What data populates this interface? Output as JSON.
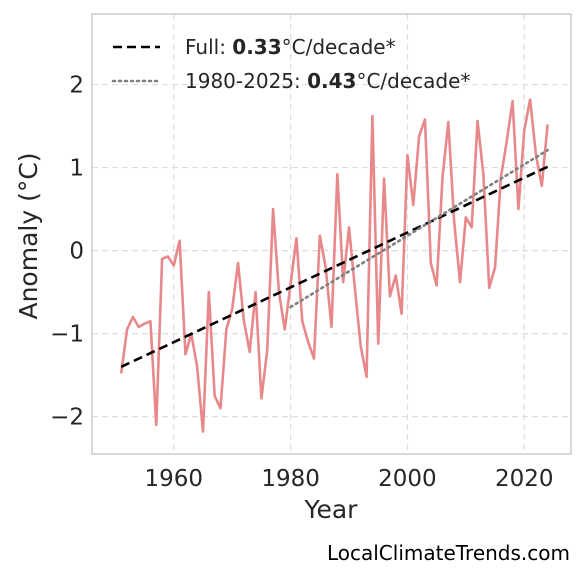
{
  "chart_data": {
    "type": "line",
    "xlabel": "Year",
    "ylabel": "Anomaly (°C)",
    "xlim": [
      1946,
      2028
    ],
    "ylim": [
      -2.45,
      2.85
    ],
    "xticks": [
      1960,
      1980,
      2000,
      2020
    ],
    "yticks": [
      -2,
      -1,
      0,
      1,
      2
    ],
    "ytick_labels": [
      "−2",
      "−1",
      "0",
      "1",
      "2"
    ],
    "grid": true,
    "legend_position": "top-left",
    "series": [
      {
        "style": "solid",
        "color": "#e8888a",
        "x": [
          1951,
          1952,
          1953,
          1954,
          1955,
          1956,
          1957,
          1958,
          1959,
          1960,
          1961,
          1962,
          1963,
          1964,
          1965,
          1966,
          1967,
          1968,
          1969,
          1970,
          1971,
          1972,
          1973,
          1974,
          1975,
          1976,
          1977,
          1978,
          1979,
          1980,
          1981,
          1982,
          1983,
          1984,
          1985,
          1986,
          1987,
          1988,
          1989,
          1990,
          1991,
          1992,
          1993,
          1994,
          1995,
          1996,
          1997,
          1998,
          1999,
          2000,
          2001,
          2002,
          2003,
          2004,
          2005,
          2006,
          2007,
          2008,
          2009,
          2010,
          2011,
          2012,
          2013,
          2014,
          2015,
          2016,
          2017,
          2018,
          2019,
          2020,
          2021,
          2022,
          2023,
          2024
        ],
        "y": [
          -1.48,
          -0.95,
          -0.8,
          -0.92,
          -0.88,
          -0.85,
          -2.1,
          -0.1,
          -0.07,
          -0.18,
          0.12,
          -1.25,
          -1.0,
          -1.4,
          -2.18,
          -0.5,
          -1.75,
          -1.9,
          -0.95,
          -0.7,
          -0.15,
          -0.85,
          -1.22,
          -0.5,
          -1.78,
          -1.2,
          0.5,
          -0.5,
          -0.95,
          -0.4,
          0.15,
          -0.85,
          -1.1,
          -1.3,
          0.18,
          -0.2,
          -0.92,
          0.92,
          -0.38,
          0.28,
          -0.45,
          -1.15,
          -1.52,
          1.62,
          -1.12,
          0.87,
          -0.55,
          -0.3,
          -0.76,
          1.15,
          0.55,
          1.38,
          1.58,
          -0.15,
          -0.42,
          0.88,
          1.55,
          0.35,
          -0.38,
          0.4,
          0.28,
          1.56,
          0.92,
          -0.45,
          -0.2,
          0.88,
          1.32,
          1.8,
          0.5,
          1.45,
          1.82,
          1.15,
          0.78,
          1.52
        ]
      },
      {
        "name": "Full: 0.33°C/decade*",
        "style": "dashed",
        "color": "#000000",
        "x": [
          1951,
          2024
        ],
        "y": [
          -1.4,
          1.01
        ]
      },
      {
        "name": "1980-2025: 0.43°C/decade*",
        "style": "dotted",
        "color": "#808080",
        "x": [
          1980,
          2024
        ],
        "y": [
          -0.68,
          1.21
        ]
      }
    ],
    "legend": [
      {
        "prefix": "Full: ",
        "bold": "0.33",
        "suffix": "°C/decade*"
      },
      {
        "prefix": "1980-2025: ",
        "bold": "0.43",
        "suffix": "°C/decade*"
      }
    ]
  },
  "credit": "LocalClimateTrends.com",
  "colors": {
    "frame": "#cccccc",
    "grid": "#dedede"
  }
}
